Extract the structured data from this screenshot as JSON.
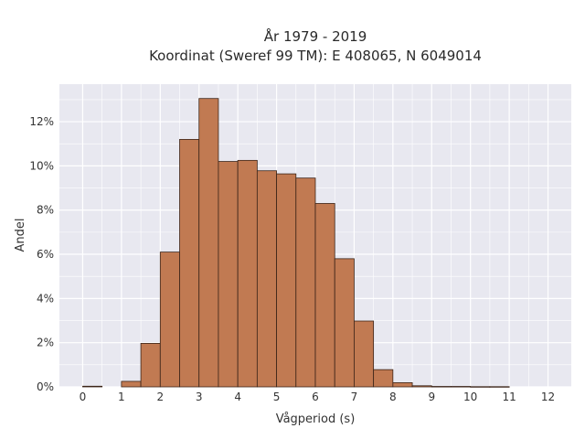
{
  "chart_data": {
    "type": "bar",
    "title_line1": "År 1979 - 2019",
    "title_line2": "Koordinat (Sweref 99 TM): E 408065, N 6049014",
    "xlabel": "Vågperiod (s)",
    "ylabel": "Andel",
    "xlim": [
      -0.6,
      12.6
    ],
    "ylim": [
      0,
      13.7
    ],
    "xticks": [
      "0",
      "1",
      "2",
      "3",
      "4",
      "5",
      "6",
      "7",
      "8",
      "9",
      "10",
      "11",
      "12"
    ],
    "yticks": [
      "0%",
      "2%",
      "4%",
      "6%",
      "8%",
      "10%",
      "12%"
    ],
    "bin_width": 0.5,
    "bins": [
      {
        "start": 0.0,
        "value": 0.03
      },
      {
        "start": 0.5,
        "value": 0.0
      },
      {
        "start": 1.0,
        "value": 0.25
      },
      {
        "start": 1.5,
        "value": 1.97
      },
      {
        "start": 2.0,
        "value": 6.1
      },
      {
        "start": 2.5,
        "value": 11.2
      },
      {
        "start": 3.0,
        "value": 13.05
      },
      {
        "start": 3.5,
        "value": 10.2
      },
      {
        "start": 4.0,
        "value": 10.25
      },
      {
        "start": 4.5,
        "value": 9.78
      },
      {
        "start": 5.0,
        "value": 9.64
      },
      {
        "start": 5.5,
        "value": 9.45
      },
      {
        "start": 6.0,
        "value": 8.3
      },
      {
        "start": 6.5,
        "value": 5.8
      },
      {
        "start": 7.0,
        "value": 2.98
      },
      {
        "start": 7.5,
        "value": 0.78
      },
      {
        "start": 8.0,
        "value": 0.19
      },
      {
        "start": 8.5,
        "value": 0.05
      },
      {
        "start": 9.0,
        "value": 0.02
      },
      {
        "start": 9.5,
        "value": 0.02
      },
      {
        "start": 10.0,
        "value": 0.01
      },
      {
        "start": 10.5,
        "value": 0.01
      }
    ],
    "grid": true,
    "colors": {
      "bar_fill": "#c17a52",
      "bar_edge": "#3b2418",
      "plot_background": "#e8e8f0",
      "grid": "#ffffff"
    }
  }
}
